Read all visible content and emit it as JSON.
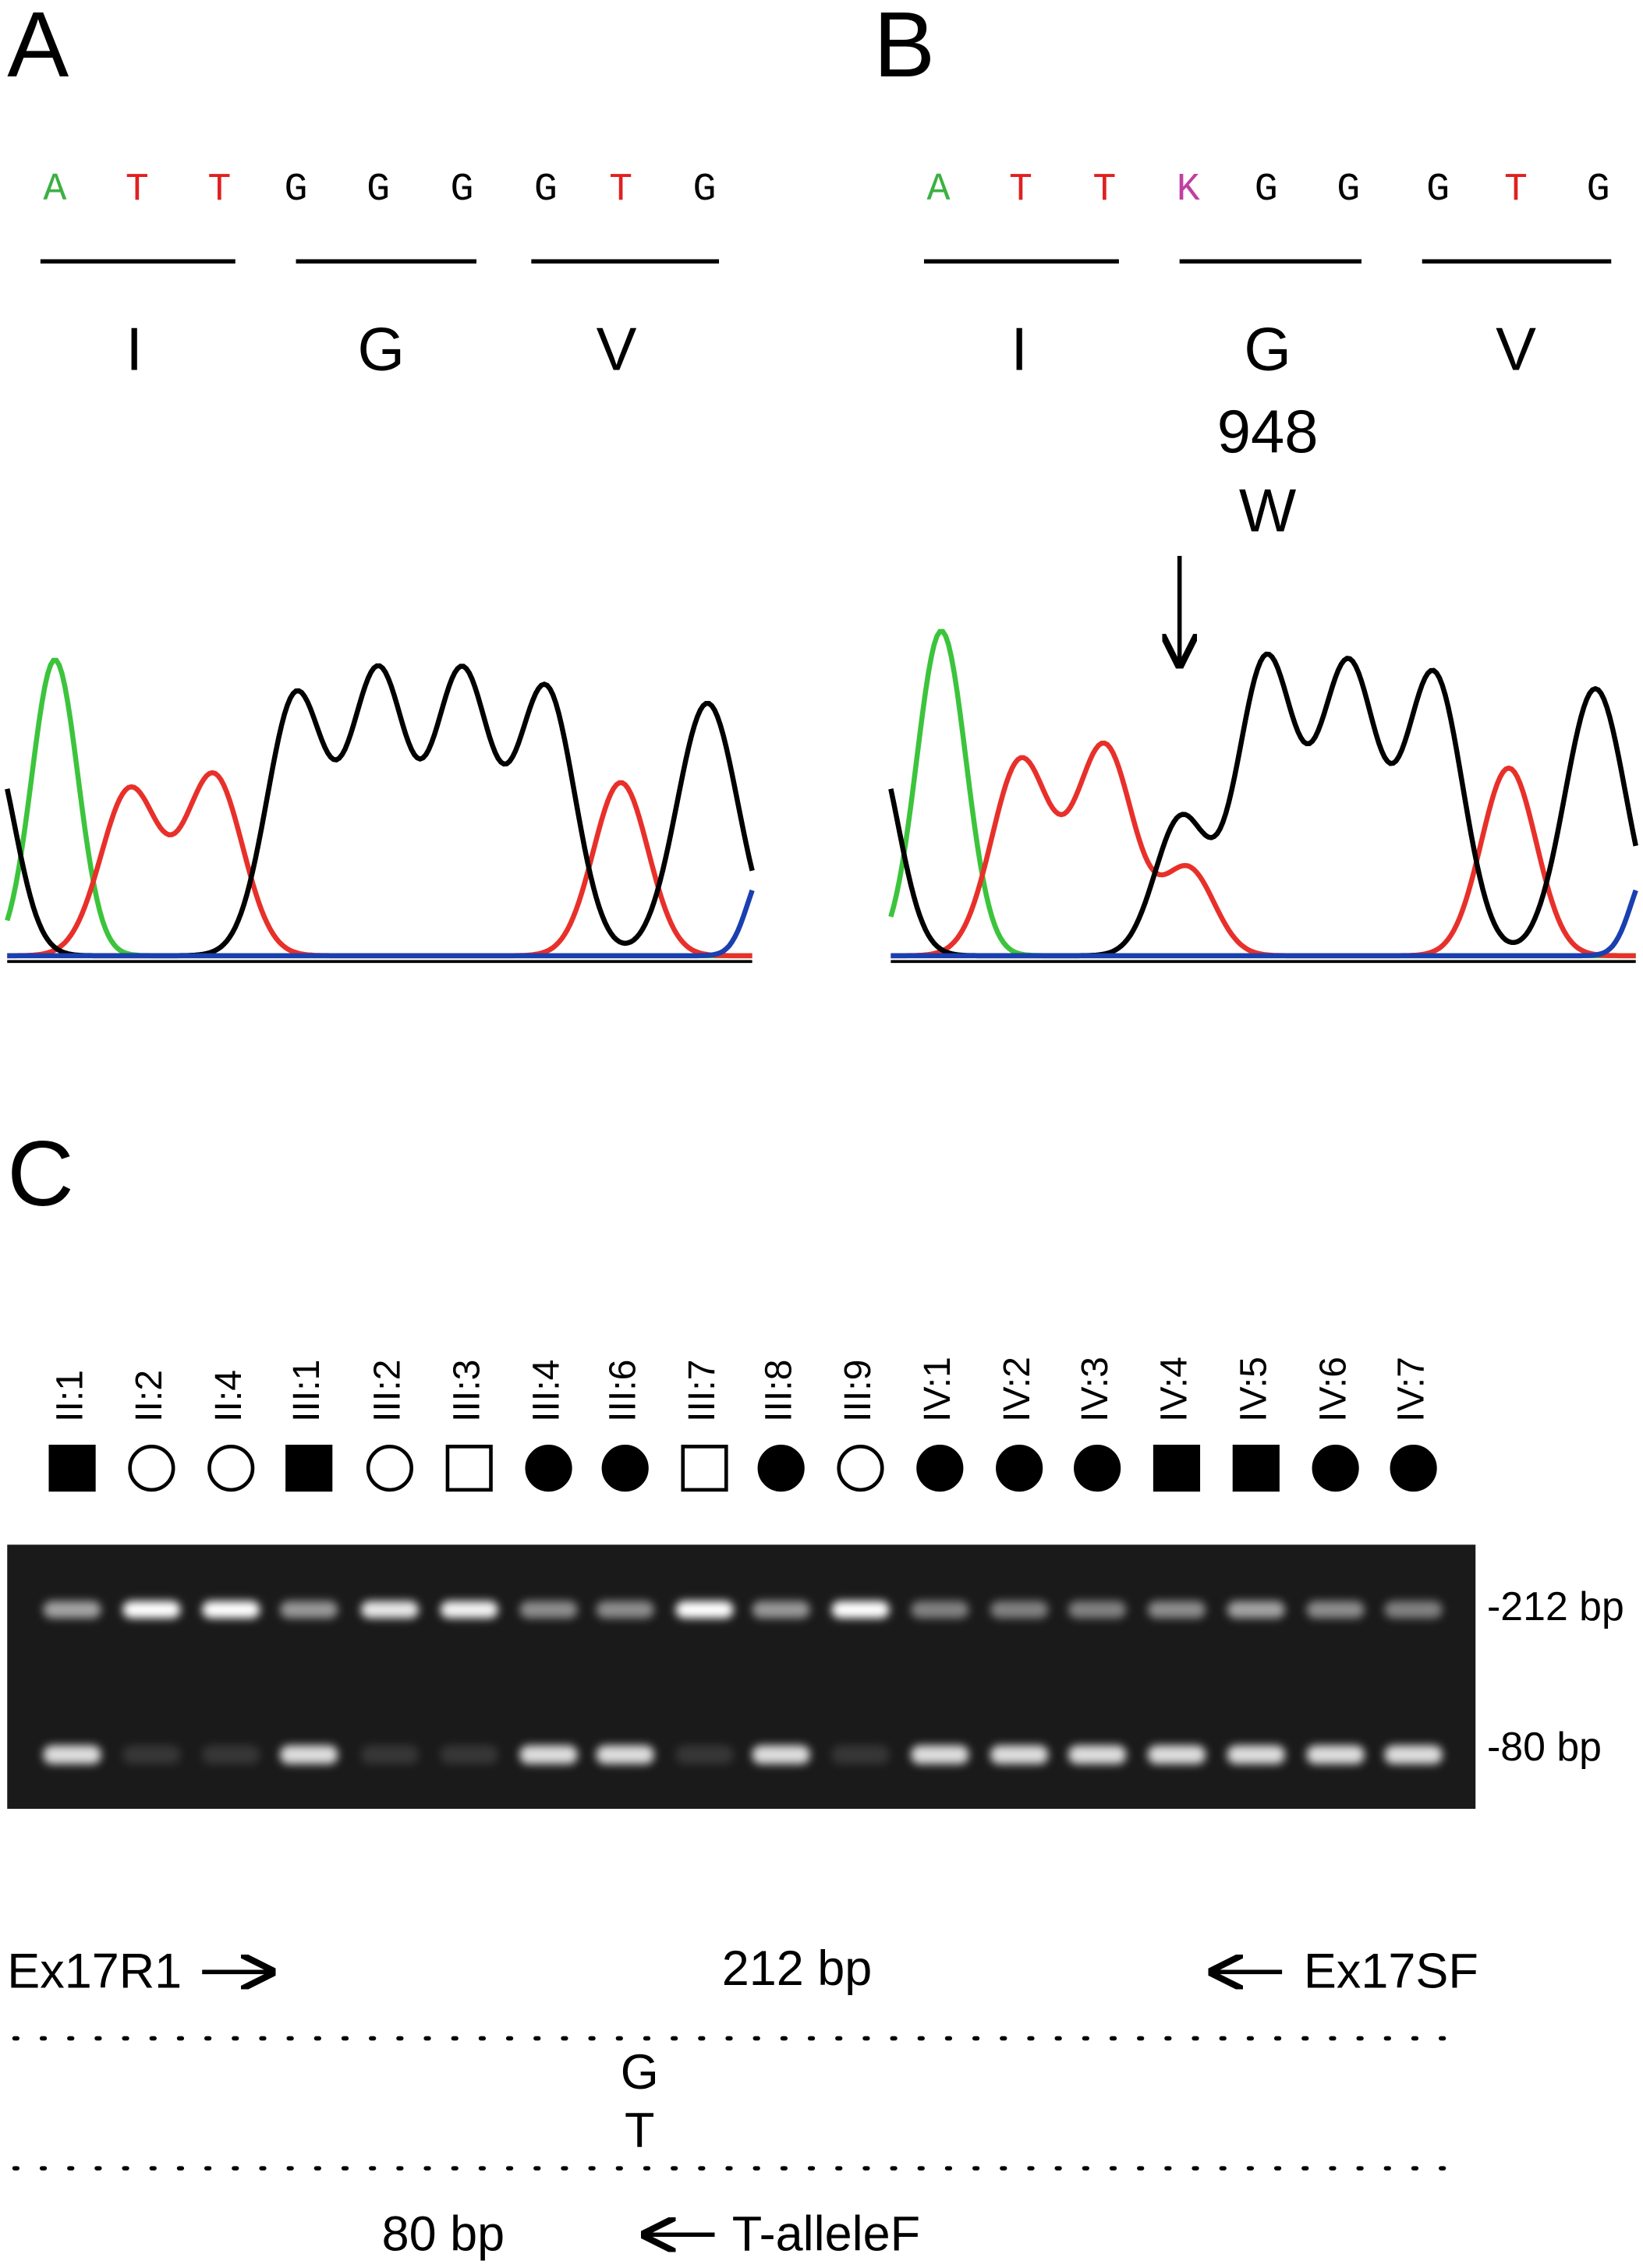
{
  "panel_a": {
    "label": "A",
    "bases": [
      "A",
      "T",
      "T",
      "G",
      "G",
      "G",
      "G",
      "T",
      "G"
    ],
    "amino_acids": [
      "I",
      "G",
      "V"
    ]
  },
  "panel_b": {
    "label": "B",
    "bases": [
      "A",
      "T",
      "T",
      "K",
      "G",
      "G",
      "G",
      "T",
      "G"
    ],
    "amino_acids": [
      "I",
      "G",
      "V"
    ],
    "position": "948",
    "mutant": "W"
  },
  "panel_c": {
    "label": "C",
    "lanes": [
      "II:1",
      "II:2",
      "II:4",
      "III:1",
      "III:2",
      "III:3",
      "III:4",
      "III:6",
      "III:7",
      "III:8",
      "III:9",
      "IV:1",
      "IV:2",
      "IV:3",
      "IV:4",
      "IV:5",
      "IV:6",
      "IV:7"
    ],
    "band_labels": [
      "-212 bp",
      "-80 bp"
    ],
    "scheme": {
      "forward_primer": "Ex17R1",
      "long_product": "212 bp",
      "reverse_primer": "Ex17SF",
      "wild_base": "G",
      "mutant_base": "T",
      "short_product": "80 bp",
      "allele_primer": "T-alleleF"
    }
  }
}
